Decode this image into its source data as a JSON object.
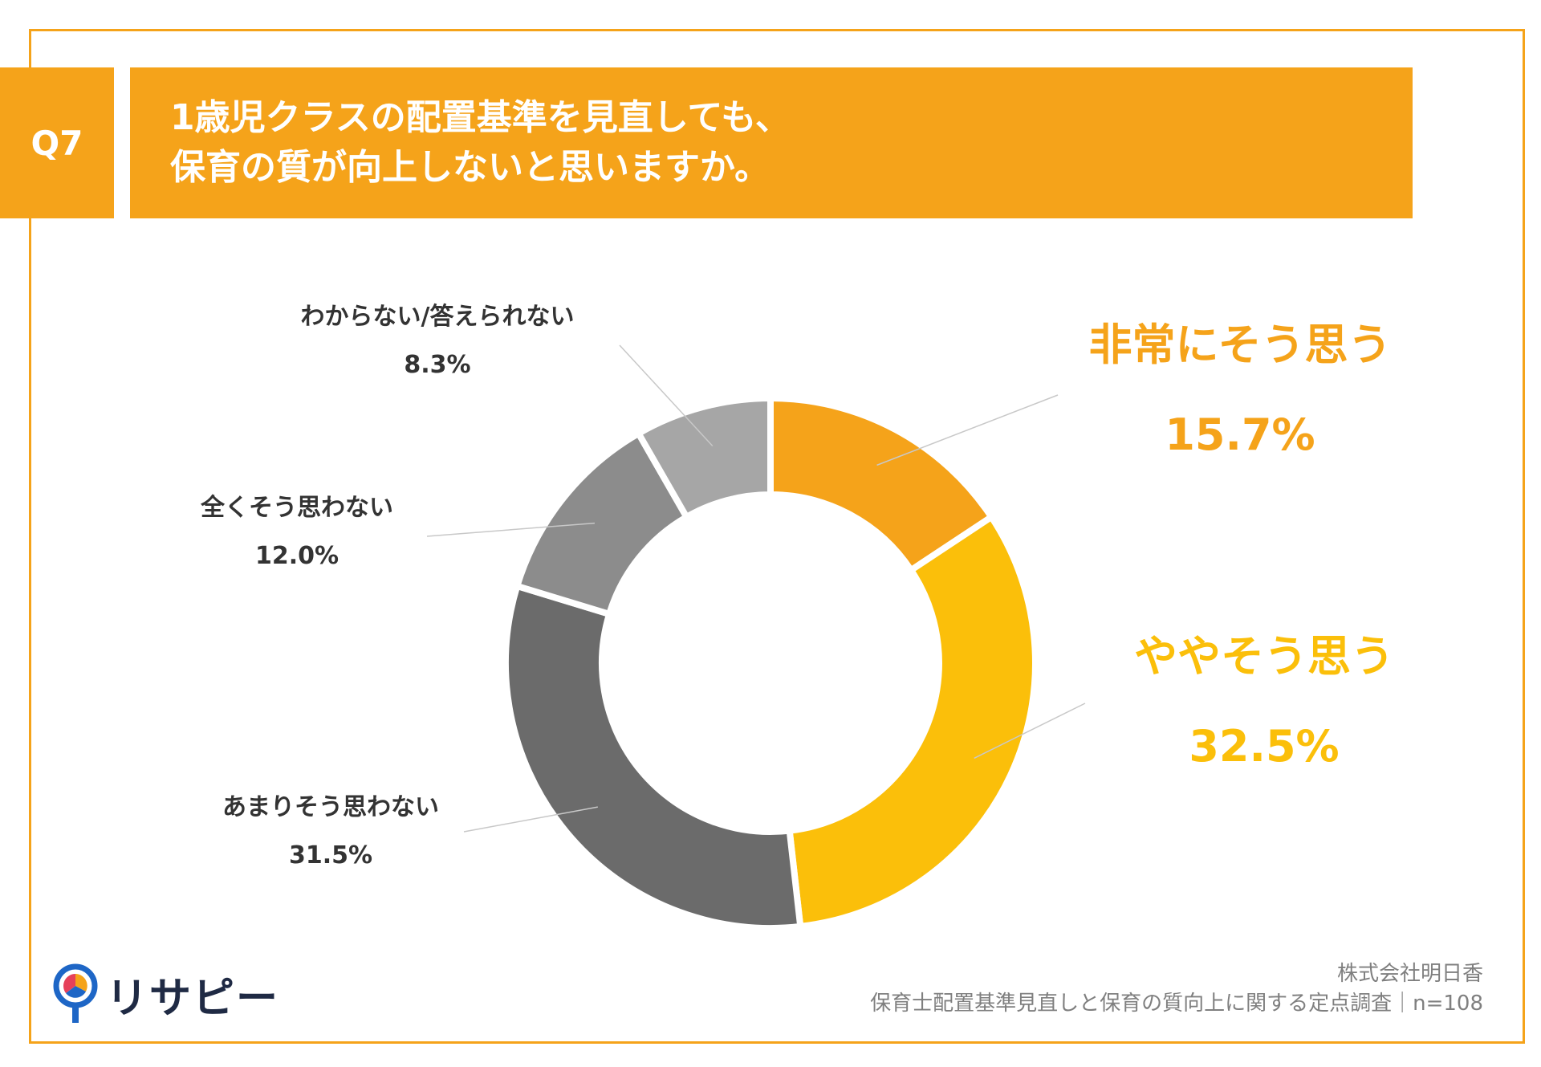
{
  "header": {
    "question_label": "Q7",
    "title_line1": "1歳児クラスの配置基準を見直しても、",
    "title_line2": "保育の質が向上しないと思いますか。"
  },
  "chart_data": {
    "type": "pie",
    "donut": true,
    "title": "1歳児クラスの配置基準を見直しても、保育の質が向上しないと思いますか。",
    "slices": [
      {
        "label": "非常にそう思う",
        "value": 15.7,
        "value_label": "15.7%",
        "color": "#f5a31a",
        "label_color": "#f5a31a"
      },
      {
        "label": "ややそう思う",
        "value": 32.5,
        "value_label": "32.5%",
        "color": "#fbbf0a",
        "label_color": "#fbbf0a"
      },
      {
        "label": "あまりそう思わない",
        "value": 31.5,
        "value_label": "31.5%",
        "color": "#6b6b6b",
        "label_color": "#333333"
      },
      {
        "label": "全くそう思わない",
        "value": 12.0,
        "value_label": "12.0%",
        "color": "#8c8c8c",
        "label_color": "#333333"
      },
      {
        "label": "わからない/答えられない",
        "value": 8.3,
        "value_label": "8.3%",
        "color": "#a6a6a6",
        "label_color": "#333333"
      }
    ]
  },
  "footer": {
    "company": "株式会社明日香",
    "survey": "保育士配置基準見直しと保育の質向上に関する定点調査｜n=108"
  },
  "logo": {
    "text": "リサピー",
    "icon": "map-pin-pie-icon"
  }
}
